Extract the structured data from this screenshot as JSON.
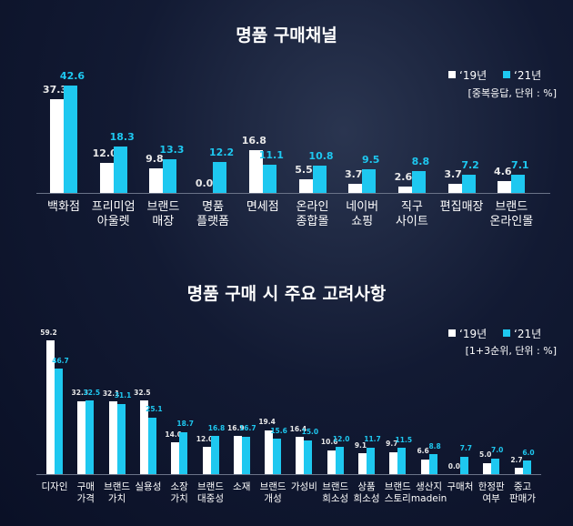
{
  "chart_data": [
    {
      "type": "bar",
      "title": "명품 구매채널",
      "note": "[중복응답, 단위 : %]",
      "categories": [
        "백화점",
        "프리미엄\n아울렛",
        "브랜드\n매장",
        "명품\n플랫폼",
        "면세점",
        "온라인\n종합몰",
        "네이버\n쇼핑",
        "직구\n사이트",
        "편집매장",
        "브랜드\n온라인몰"
      ],
      "series": [
        {
          "name": "‘19년",
          "color": "#ffffff",
          "values": [
            37.3,
            12.0,
            9.8,
            0.0,
            16.8,
            5.5,
            3.7,
            2.6,
            3.7,
            4.6
          ],
          "value_labels": [
            "37.3",
            "12.0",
            "9.8",
            "0.0",
            "16.8",
            "5.5",
            "3.7",
            "2.6",
            "3.7",
            "4.6"
          ]
        },
        {
          "name": "‘21년",
          "color": "#1ec8f0",
          "values": [
            42.6,
            18.3,
            13.3,
            12.2,
            11.1,
            10.8,
            9.5,
            8.8,
            7.2,
            7.1
          ],
          "value_labels": [
            "42.6",
            "18.3",
            "13.3",
            "12.2",
            "11.1",
            "10.8",
            "9.5",
            "8.8",
            "7.2",
            "7.1"
          ]
        }
      ]
    },
    {
      "type": "bar",
      "title": "명품 구매 시 주요 고려사항",
      "note": "[1+3순위, 단위 : %]",
      "categories": [
        "디자인",
        "구매\n가격",
        "브랜드\n가치",
        "실용성",
        "소장\n가치",
        "브랜드\n대중성",
        "소재",
        "브랜드\n개성",
        "가성비",
        "브랜드\n희소성",
        "상품\n희소성",
        "브랜드\n스토리",
        "생산지\nmadein",
        "구매처",
        "한정판\n여부",
        "중고\n판매가"
      ],
      "series": [
        {
          "name": "‘19년",
          "color": "#ffffff",
          "values": [
            59.2,
            32.3,
            32.1,
            32.5,
            14.0,
            12.0,
            16.9,
            19.4,
            16.4,
            10.6,
            9.1,
            9.7,
            6.6,
            0.0,
            5.0,
            2.7
          ],
          "value_labels": [
            "59.2",
            "32.3",
            "32.1",
            "32.5",
            "14.0",
            "12.0",
            "16.9",
            "19.4",
            "16.4",
            "10.6",
            "9.1",
            "9.7",
            "6.6",
            "0.0",
            "5.0",
            "2.7"
          ]
        },
        {
          "name": "‘21년",
          "color": "#1ec8f0",
          "values": [
            46.7,
            32.5,
            31.1,
            25.1,
            18.7,
            16.8,
            16.7,
            15.6,
            15.0,
            12.0,
            11.7,
            11.5,
            8.8,
            7.7,
            7.0,
            6.0
          ],
          "value_labels": [
            "46.7",
            "32.5",
            "31.1",
            "25.1",
            "18.7",
            "16.8",
            "16.7",
            "15.6",
            "15.0",
            "12.0",
            "11.7",
            "11.5",
            "8.8",
            "7.7",
            "7.0",
            "6.0"
          ]
        }
      ]
    }
  ]
}
